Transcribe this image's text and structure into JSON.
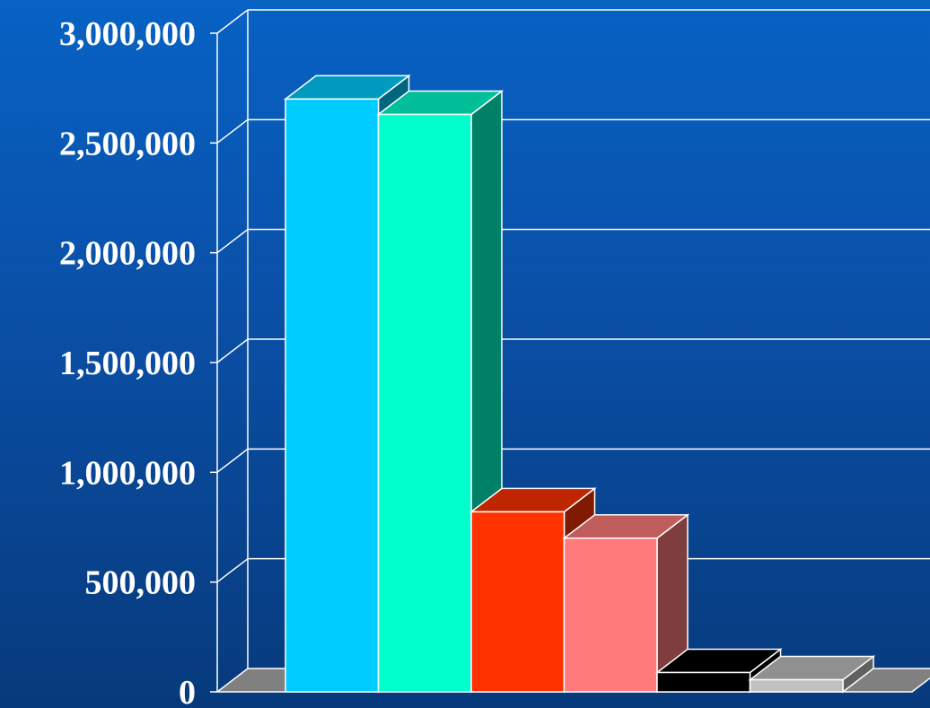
{
  "chart_data": {
    "type": "bar",
    "style": "3d-clustered",
    "title": "",
    "xlabel": "",
    "ylabel": "",
    "ylim": [
      0,
      3000000
    ],
    "yticks": [
      0,
      500000,
      1000000,
      1500000,
      2000000,
      2500000,
      3000000
    ],
    "ytick_labels": [
      "0",
      "500,000",
      "1,000,000",
      "1,500,000",
      "2,000,000",
      "2,500,000",
      "3,000,000"
    ],
    "grid": true,
    "legend": "none",
    "series": [
      {
        "values": [
          2700000
        ],
        "color": "#00ccff"
      },
      {
        "values": [
          2630000
        ],
        "color": "#00ffcc"
      },
      {
        "values": [
          820000
        ],
        "color": "#ff3300"
      },
      {
        "values": [
          700000
        ],
        "color": "#ff7a7a"
      },
      {
        "values": [
          88000
        ],
        "color": "#000000"
      },
      {
        "values": [
          55000
        ],
        "color": "#c0c0c0"
      }
    ],
    "colors": {
      "background": "#0a57b4",
      "grid": "#ffffff",
      "floor": "#808080"
    }
  }
}
